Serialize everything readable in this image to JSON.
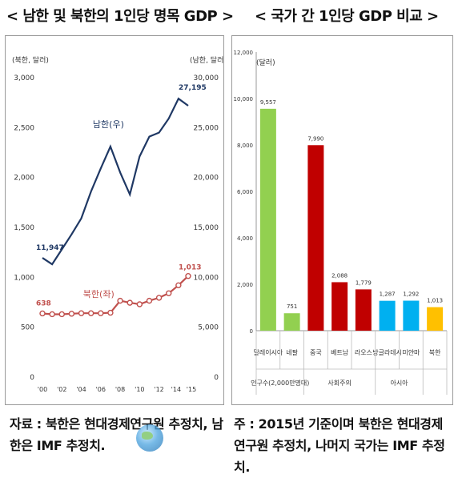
{
  "left": {
    "title": "< 남한 및 북한의 1인당 명목 GDP >",
    "unit_left": "(북한, 달러)",
    "unit_right": "(남한, 달러)",
    "note": "자료 : 북한은 현대경제연구원 추정치, 남한은 IMF 추정치."
  },
  "right": {
    "title": "< 국가 간 1인당 GDP 비교 >",
    "unit": "(달러)",
    "note": "주 : 2015년 기준이며 북한은 현대경제연구원 추정치, 나머지 국가는 IMF 추정치."
  },
  "chart_data": [
    {
      "type": "line",
      "x": [
        "'00",
        "'01",
        "'02",
        "'03",
        "'04",
        "'05",
        "'06",
        "'07",
        "'08",
        "'09",
        "'10",
        "'11",
        "'12",
        "'13",
        "'14",
        "'15"
      ],
      "x_tick_labels": [
        "'00",
        "'02",
        "'04",
        "'06",
        "'08",
        "'10",
        "'12",
        "'14",
        "'15"
      ],
      "y_left_ticks": [
        "0",
        "500",
        "1,000",
        "1,500",
        "2,000",
        "2,500",
        "3,000"
      ],
      "y_right_ticks": [
        "0",
        "5,000",
        "10,000",
        "15,000",
        "20,000",
        "25,000",
        "30,000"
      ],
      "ylim_left": [
        0,
        3000
      ],
      "ylim_right": [
        0,
        30000
      ],
      "grid": false,
      "series": [
        {
          "name": "남한(우)",
          "axis": "right",
          "color": "#1f3864",
          "marker": "none",
          "values": [
            11947,
            11300,
            12800,
            14300,
            15900,
            18600,
            20900,
            23100,
            20500,
            18300,
            22100,
            24100,
            24500,
            25900,
            27900,
            27195
          ],
          "start_label": "11,947",
          "end_label": "27,195"
        },
        {
          "name": "북한(좌)",
          "axis": "left",
          "color": "#c0504d",
          "marker": "circle",
          "values": [
            638,
            630,
            630,
            635,
            640,
            640,
            640,
            645,
            765,
            745,
            730,
            765,
            795,
            840,
            920,
            1013
          ],
          "start_label": "638",
          "end_label": "1,013"
        }
      ]
    },
    {
      "type": "bar",
      "categories": [
        "말레이시아",
        "네팔",
        "중국",
        "베트남",
        "라오스",
        "방글라데시",
        "미얀마",
        "북한"
      ],
      "values": [
        9557,
        751,
        7990,
        2088,
        1779,
        1287,
        1292,
        1013
      ],
      "value_labels": [
        "9,557",
        "751",
        "7,990",
        "2,088",
        "1,779",
        "1,287",
        "1,292",
        "1,013"
      ],
      "colors": [
        "#92d050",
        "#92d050",
        "#c00000",
        "#c00000",
        "#c00000",
        "#00b0f0",
        "#00b0f0",
        "#ffc000"
      ],
      "y_ticks": [
        "0",
        "2,000",
        "4,000",
        "6,000",
        "8,000",
        "10,000",
        "12,000"
      ],
      "ylim": [
        0,
        12000
      ],
      "grid": false,
      "groups": [
        {
          "label": "인구수(2,000만명대)",
          "start": 0,
          "end": 1
        },
        {
          "label": "사회주의",
          "start": 2,
          "end": 4
        },
        {
          "label": "아시아",
          "start": 5,
          "end": 6
        }
      ]
    }
  ]
}
